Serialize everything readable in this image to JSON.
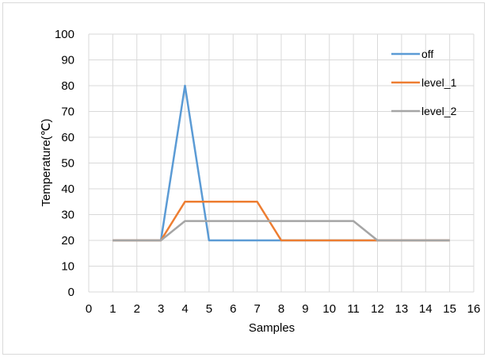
{
  "chart_data": {
    "type": "line",
    "title": "",
    "xlabel": "Samples",
    "ylabel": "Temperature(℃)",
    "xlim": [
      0,
      16
    ],
    "ylim": [
      0,
      100
    ],
    "x_ticks": [
      0,
      1,
      2,
      3,
      4,
      5,
      6,
      7,
      8,
      9,
      10,
      11,
      12,
      13,
      14,
      15,
      16
    ],
    "y_ticks": [
      0,
      10,
      20,
      30,
      40,
      50,
      60,
      70,
      80,
      90,
      100
    ],
    "grid": true,
    "legend_position": "right",
    "x": [
      1,
      2,
      3,
      4,
      5,
      6,
      7,
      8,
      9,
      10,
      11,
      12,
      13,
      14,
      15
    ],
    "series": [
      {
        "name": "off",
        "color": "#5b9bd5",
        "values": [
          20,
          20,
          20,
          80,
          20,
          20,
          20,
          20,
          20,
          20,
          20,
          20,
          20,
          20,
          20
        ]
      },
      {
        "name": "level_1",
        "color": "#ed7d31",
        "values": [
          20,
          20,
          20,
          35,
          35,
          35,
          35,
          20,
          20,
          20,
          20,
          20,
          20,
          20,
          20
        ]
      },
      {
        "name": "level_2",
        "color": "#a5a5a5",
        "values": [
          20,
          20,
          20,
          27.5,
          27.5,
          27.5,
          27.5,
          27.5,
          27.5,
          27.5,
          27.5,
          20,
          20,
          20,
          20
        ]
      }
    ]
  }
}
